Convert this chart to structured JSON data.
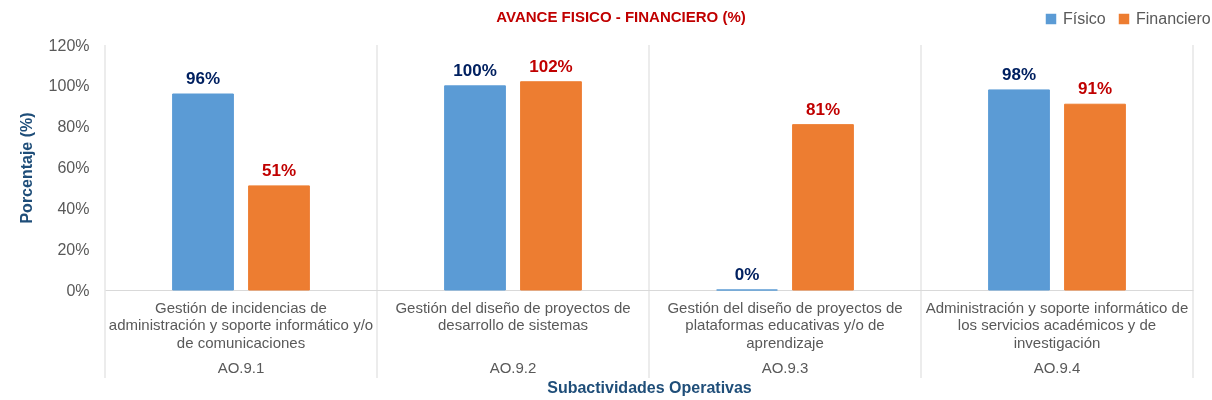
{
  "chart_data": {
    "type": "bar",
    "title": "AVANCE FISICO - FINANCIERO (%)",
    "xlabel": "Subactividades Operativas",
    "ylabel": "Porcentaje (%)",
    "categories": [
      "Gestión de incidencias de\nadministración y soporte informático y/o\nde comunicaciones\nAO.9.1",
      "Gestión del diseño de proyectos de\ndesarrollo de sistemas\nAO.9.2",
      "Gestión del diseño de proyectos de\nplataformas educativas y/o de\naprendizaje\nAO.9.3",
      "Administración y soporte informático de\nlos servicios académicos y de\ninvestigación\nAO.9.4"
    ],
    "series": [
      {
        "name": "Físico",
        "color": "#5B9BD5",
        "values": [
          96,
          100,
          0,
          98
        ],
        "value_labels": [
          "96%",
          "100%",
          "0%",
          "98%"
        ]
      },
      {
        "name": "Financiero",
        "color": "#ED7D31",
        "values": [
          51,
          102,
          81,
          91
        ],
        "value_labels": [
          "51%",
          "102%",
          "81%",
          "91%"
        ]
      }
    ],
    "ylim": [
      0,
      120
    ],
    "yticks": [
      {
        "value": 0,
        "label": "0%"
      },
      {
        "value": 20,
        "label": "20%"
      },
      {
        "value": 40,
        "label": "40%"
      },
      {
        "value": 60,
        "label": "60%"
      },
      {
        "value": 80,
        "label": "80%"
      },
      {
        "value": 100,
        "label": "100%"
      },
      {
        "value": 120,
        "label": "120%"
      }
    ],
    "grid": "x",
    "legend": "top right"
  }
}
